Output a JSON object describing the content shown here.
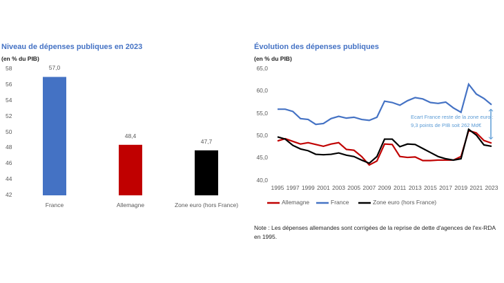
{
  "chart_data": [
    {
      "type": "bar",
      "title": "Niveau de dépenses publiques en 2023",
      "subtitle": "(en % du PIB)",
      "categories": [
        "France",
        "Allemagne",
        "Zone euro (hors France)"
      ],
      "values": [
        57.0,
        48.4,
        47.7
      ],
      "value_labels": [
        "57,0",
        "48,4",
        "47,7"
      ],
      "colors": [
        "#4472c4",
        "#c00000",
        "#000000"
      ],
      "ylim": [
        42,
        58
      ],
      "yticks": [
        "42",
        "44",
        "46",
        "48",
        "50",
        "52",
        "54",
        "56",
        "58"
      ],
      "grid": false
    },
    {
      "type": "line",
      "title": "Évolution des dépenses publiques",
      "subtitle": "(en % du PIB)",
      "x": [
        1995,
        1996,
        1997,
        1998,
        1999,
        2000,
        2001,
        2002,
        2003,
        2004,
        2005,
        2006,
        2007,
        2008,
        2009,
        2010,
        2011,
        2012,
        2013,
        2014,
        2015,
        2016,
        2017,
        2018,
        2019,
        2020,
        2021,
        2022,
        2023
      ],
      "xticks": [
        "1995",
        "1997",
        "1999",
        "2001",
        "2003",
        "2005",
        "2007",
        "2009",
        "2011",
        "2013",
        "2015",
        "2017",
        "2019",
        "2021",
        "2023"
      ],
      "ylim": [
        40,
        65
      ],
      "yticks": [
        "40,0",
        "45,0",
        "50,0",
        "55,0",
        "60,0",
        "65,0"
      ],
      "grid": false,
      "legend": "bottom",
      "series": [
        {
          "name": "Allemagne",
          "color": "#c00000",
          "values": [
            48.9,
            49.4,
            48.8,
            48.2,
            48.5,
            48.1,
            47.7,
            48.2,
            48.5,
            47.0,
            46.8,
            45.4,
            43.5,
            44.4,
            48.2,
            48.1,
            45.4,
            45.2,
            45.3,
            44.5,
            44.5,
            44.6,
            44.6,
            44.6,
            45.4,
            51.2,
            50.7,
            49.0,
            48.4
          ]
        },
        {
          "name": "France",
          "color": "#4472c4",
          "values": [
            56.0,
            56.0,
            55.5,
            53.9,
            53.7,
            52.6,
            52.8,
            53.9,
            54.4,
            54.0,
            54.2,
            53.7,
            53.5,
            54.2,
            57.8,
            57.5,
            56.9,
            57.9,
            58.6,
            58.3,
            57.5,
            57.3,
            57.6,
            56.3,
            55.3,
            61.6,
            59.4,
            58.4,
            57.0
          ]
        },
        {
          "name": "Zone euro (hors France)",
          "color": "#000000",
          "values": [
            49.8,
            49.3,
            47.9,
            47.1,
            46.7,
            45.9,
            45.8,
            45.9,
            46.2,
            45.7,
            45.4,
            44.6,
            43.9,
            45.4,
            49.3,
            49.3,
            47.6,
            48.2,
            48.1,
            47.2,
            46.3,
            45.4,
            44.9,
            44.6,
            44.9,
            51.5,
            50.2,
            48.0,
            47.7
          ]
        }
      ],
      "annotation": [
        "Ecart France reste de la zone euro :",
        "9,3 points de PIB soit 262 Md€"
      ],
      "annotation_color": "#5b9bd5"
    }
  ],
  "note": "Note : Les dépenses allemandes sont corrigées de la reprise de dette d'agences de l'ex-RDA en 1995."
}
